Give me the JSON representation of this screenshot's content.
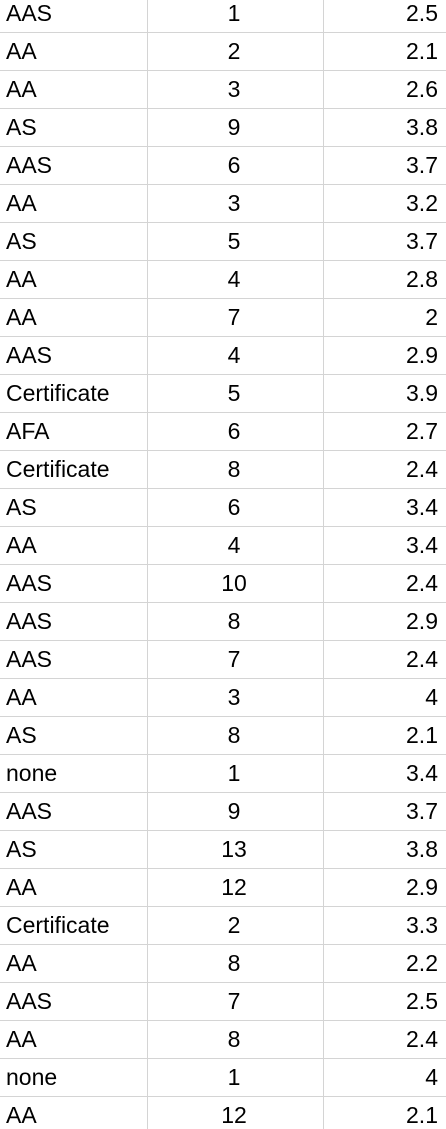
{
  "rows": [
    [
      "AAS",
      "1",
      "2.5"
    ],
    [
      "AA",
      "2",
      "2.1"
    ],
    [
      "AA",
      "3",
      "2.6"
    ],
    [
      "AS",
      "9",
      "3.8"
    ],
    [
      "AAS",
      "6",
      "3.7"
    ],
    [
      "AA",
      "3",
      "3.2"
    ],
    [
      "AS",
      "5",
      "3.7"
    ],
    [
      "AA",
      "4",
      "2.8"
    ],
    [
      "AA",
      "7",
      "2"
    ],
    [
      "AAS",
      "4",
      "2.9"
    ],
    [
      "Certificate",
      "5",
      "3.9"
    ],
    [
      "AFA",
      "6",
      "2.7"
    ],
    [
      "Certificate",
      "8",
      "2.4"
    ],
    [
      "AS",
      "6",
      "3.4"
    ],
    [
      "AA",
      "4",
      "3.4"
    ],
    [
      "AAS",
      "10",
      "2.4"
    ],
    [
      "AAS",
      "8",
      "2.9"
    ],
    [
      "AAS",
      "7",
      "2.4"
    ],
    [
      "AA",
      "3",
      "4"
    ],
    [
      "AS",
      "8",
      "2.1"
    ],
    [
      "none",
      "1",
      "3.4"
    ],
    [
      "AAS",
      "9",
      "3.7"
    ],
    [
      "AS",
      "13",
      "3.8"
    ],
    [
      "AA",
      "12",
      "2.9"
    ],
    [
      "Certificate",
      "2",
      "3.3"
    ],
    [
      "AA",
      "8",
      "2.2"
    ],
    [
      "AAS",
      "7",
      "2.5"
    ],
    [
      "AA",
      "8",
      "2.4"
    ],
    [
      "none",
      "1",
      "4"
    ],
    [
      "AA",
      "12",
      "2.1"
    ]
  ],
  "colors": {
    "gridline": "#d4d4d4",
    "background": "#ffffff",
    "text": "#000000"
  }
}
